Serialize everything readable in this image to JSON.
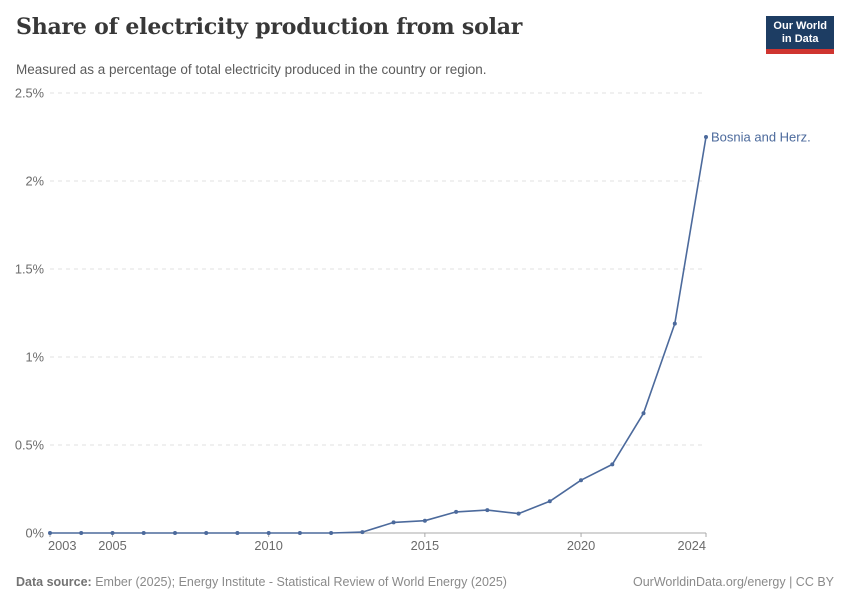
{
  "header": {
    "title": "Share of electricity production from solar",
    "subtitle": "Measured as a percentage of total electricity produced in the country or region.",
    "logo": {
      "line1": "Our World",
      "line2": "in Data",
      "bg_color": "#1d3d63",
      "accent_color": "#cf3530"
    }
  },
  "chart_data": {
    "type": "line",
    "title": "Share of electricity production from solar",
    "xlabel": "",
    "ylabel": "",
    "xlim": [
      2003,
      2024
    ],
    "ylim": [
      0,
      2.5
    ],
    "x_ticks": [
      2003,
      2005,
      2010,
      2015,
      2020,
      2024
    ],
    "y_ticks": [
      0,
      0.5,
      1,
      1.5,
      2,
      2.5
    ],
    "y_tick_labels": [
      "0%",
      "0.5%",
      "1%",
      "1.5%",
      "2%",
      "2.5%"
    ],
    "grid": "horizontal-dashed",
    "legend": "end-of-line-label",
    "end_label": "Bosnia and Herz.",
    "series": [
      {
        "name": "Bosnia and Herz.",
        "color": "#4C6A9C",
        "x": [
          2003,
          2004,
          2005,
          2006,
          2007,
          2008,
          2009,
          2010,
          2011,
          2012,
          2013,
          2014,
          2015,
          2016,
          2017,
          2018,
          2019,
          2020,
          2021,
          2022,
          2023,
          2024
        ],
        "values": [
          0,
          0,
          0,
          0,
          0,
          0,
          0,
          0,
          0,
          0,
          0.005,
          0.06,
          0.07,
          0.12,
          0.13,
          0.11,
          0.18,
          0.3,
          0.39,
          0.68,
          1.19,
          2.25
        ]
      }
    ]
  },
  "footer": {
    "source_label": "Data source:",
    "source_text": "Ember (2025); Energy Institute - Statistical Review of World Energy (2025)",
    "credit": "OurWorldinData.org/energy | CC BY"
  }
}
